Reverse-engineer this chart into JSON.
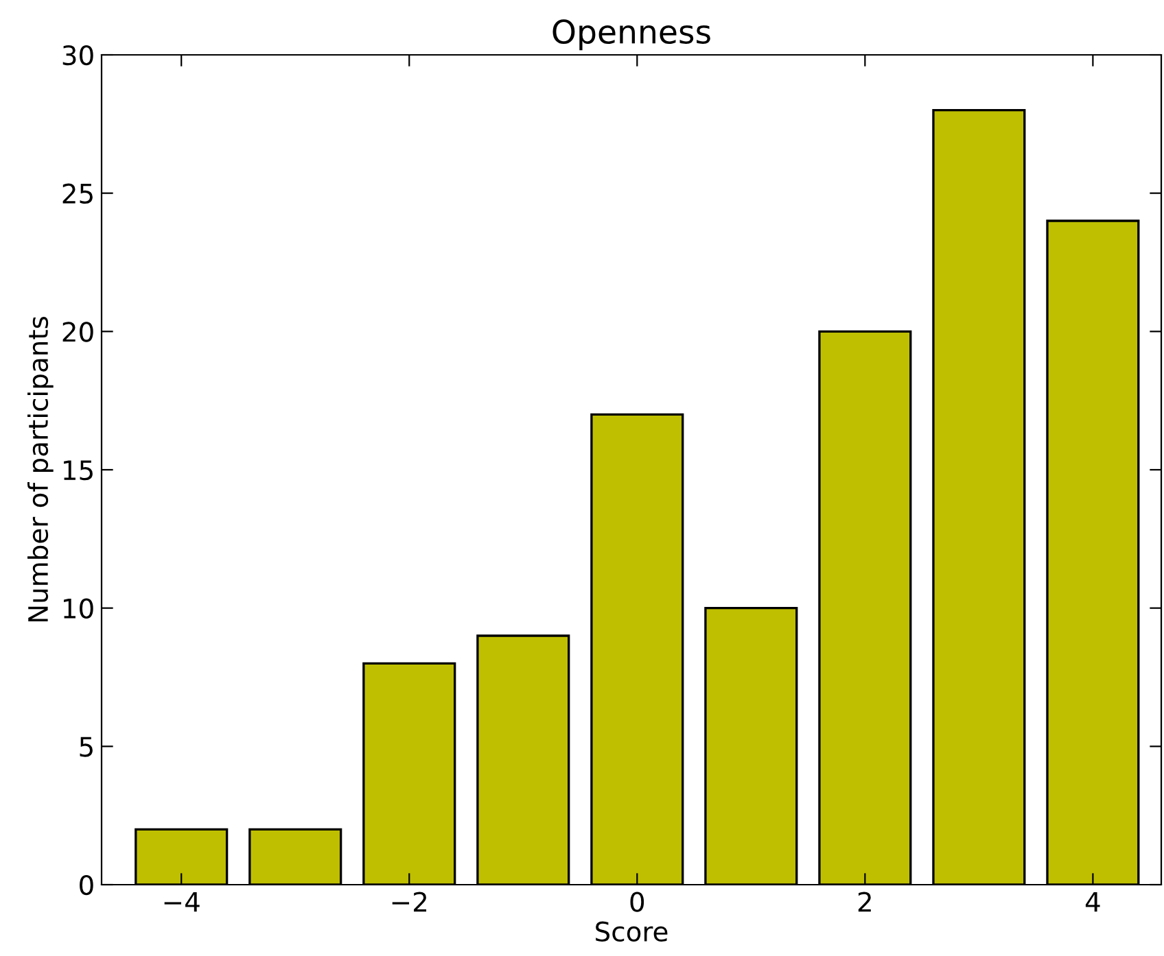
{
  "chart_data": {
    "type": "bar",
    "title": "Openness",
    "xlabel": "Score",
    "ylabel": "Number of participants",
    "x": [
      -4,
      -3,
      -2,
      -1,
      0,
      1,
      2,
      3,
      4
    ],
    "values": [
      2,
      2,
      8,
      9,
      17,
      10,
      20,
      28,
      24
    ],
    "color": "#bfbf00",
    "xlim": [
      -4.7,
      4.6
    ],
    "xticks": [
      {
        "value": -4,
        "label": "−4"
      },
      {
        "value": -2,
        "label": "−2"
      },
      0,
      2,
      4
    ],
    "ylim": [
      0,
      30
    ],
    "yticks": [
      0,
      5,
      10,
      15,
      20,
      25,
      30
    ],
    "grid": false,
    "legend": false
  }
}
